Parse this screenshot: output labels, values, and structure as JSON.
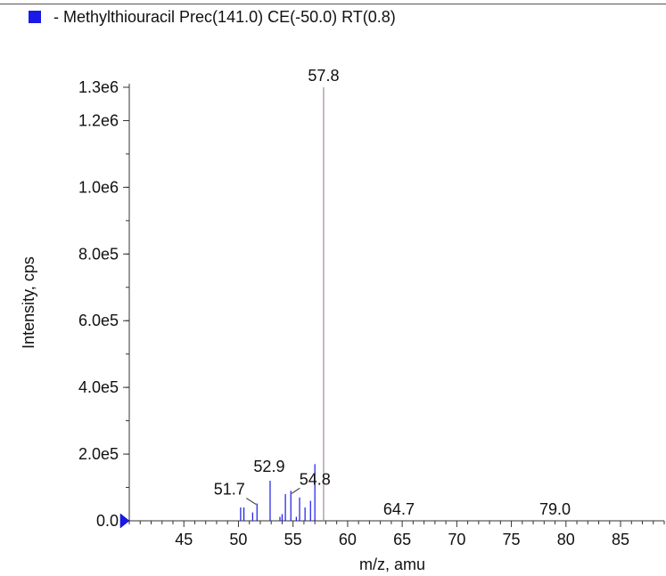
{
  "chart_data": {
    "type": "bar",
    "legend": {
      "label": "- Methylthiouracil Prec(141.0) CE(-50.0) RT(0.8)",
      "color": "#1a1ae6",
      "placement": "top-left"
    },
    "xlabel": "m/z, amu",
    "ylabel": "Intensity, cps",
    "xlim": [
      40,
      89
    ],
    "ylim": [
      0,
      1300000
    ],
    "x_ticks": [
      45,
      50,
      55,
      60,
      65,
      70,
      75,
      80,
      85
    ],
    "x_tick_labels": [
      "45",
      "50",
      "55",
      "60",
      "65",
      "70",
      "75",
      "80",
      "85"
    ],
    "y_ticks": [
      0,
      200000,
      400000,
      600000,
      800000,
      1000000,
      1200000,
      1300000
    ],
    "y_tick_labels": [
      "0.0",
      "2.0e5",
      "4.0e5",
      "6.0e5",
      "8.0e5",
      "1.0e6",
      "1.2e6",
      "1.3e6"
    ],
    "grid": false,
    "series": [
      {
        "name": "- Methylthiouracil Prec(141.0) CE(-50.0) RT(0.8)",
        "color": "#1a1ae6",
        "peaks": [
          {
            "x": 50.2,
            "y": 40000,
            "color": "#1a1ae6"
          },
          {
            "x": 50.5,
            "y": 40000,
            "color": "#1a1ae6"
          },
          {
            "x": 51.3,
            "y": 25000,
            "color": "#1a1ae6"
          },
          {
            "x": 51.7,
            "y": 52000,
            "color": "#1a1ae6"
          },
          {
            "x": 52.9,
            "y": 120000,
            "color": "#1a1ae6"
          },
          {
            "x": 53.8,
            "y": 12000,
            "color": "#1a1ae6"
          },
          {
            "x": 54.0,
            "y": 20000,
            "color": "#1a1ae6"
          },
          {
            "x": 54.3,
            "y": 80000,
            "color": "#1a1ae6"
          },
          {
            "x": 54.8,
            "y": 90000,
            "color": "#1a1ae6"
          },
          {
            "x": 55.3,
            "y": 12000,
            "color": "#1a1ae6"
          },
          {
            "x": 55.6,
            "y": 70000,
            "color": "#1a1ae6"
          },
          {
            "x": 56.1,
            "y": 40000,
            "color": "#1a1ae6"
          },
          {
            "x": 56.6,
            "y": 60000,
            "color": "#1a1ae6"
          },
          {
            "x": 57.0,
            "y": 170000,
            "color": "#1a1ae6"
          },
          {
            "x": 57.8,
            "y": 1300000,
            "color": "#a08aa0"
          },
          {
            "x": 64.7,
            "y": 0,
            "color": "#1a1ae6"
          },
          {
            "x": 79.0,
            "y": 0,
            "color": "#1a1ae6"
          }
        ]
      }
    ],
    "annotations": [
      {
        "text": "57.8",
        "x": 57.8,
        "y": 1300000
      },
      {
        "text": "52.9",
        "x": 52.9,
        "y": 120000
      },
      {
        "text": "51.7",
        "x": 51.7,
        "y": 52000,
        "leader": true
      },
      {
        "text": "54.8",
        "x": 54.8,
        "y": 90000,
        "leader": true
      },
      {
        "text": "64.7",
        "x": 64.7,
        "y": 0
      },
      {
        "text": "79.0",
        "x": 79.0,
        "y": 0
      }
    ]
  }
}
